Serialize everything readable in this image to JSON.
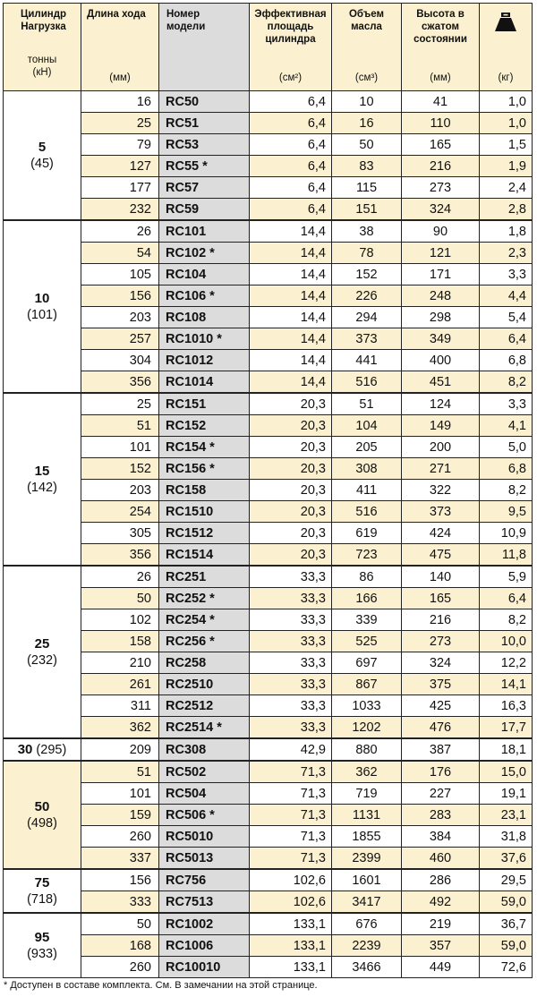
{
  "headers": {
    "cylinder": [
      "Цилиндр",
      "Нагрузка"
    ],
    "cylinder_units": [
      "тонны",
      "(кН)"
    ],
    "stroke": "Длина хода",
    "stroke_unit": "(мм)",
    "model": [
      "Номер",
      "модели"
    ],
    "area": [
      "Эффективная",
      "площадь",
      "цилиндра"
    ],
    "area_unit": "(см²)",
    "oil": [
      "Объем",
      "масла"
    ],
    "oil_unit": "(см³)",
    "height": [
      "Высота в",
      "сжатом",
      "состоянии"
    ],
    "height_unit": "(мм)",
    "weight_icon": "kettlebell-weight-icon",
    "weight_unit": "(кг)"
  },
  "groups": [
    {
      "tons": "5",
      "kn": "(45)",
      "rows": [
        {
          "stroke": "16",
          "model": "RC50",
          "area": "6,4",
          "oil": "10",
          "height": "41",
          "weight": "1,0"
        },
        {
          "stroke": "25",
          "model": "RC51",
          "area": "6,4",
          "oil": "16",
          "height": "110",
          "weight": "1,0"
        },
        {
          "stroke": "79",
          "model": "RC53",
          "area": "6,4",
          "oil": "50",
          "height": "165",
          "weight": "1,5"
        },
        {
          "stroke": "127",
          "model": "RC55 *",
          "area": "6,4",
          "oil": "83",
          "height": "216",
          "weight": "1,9"
        },
        {
          "stroke": "177",
          "model": "RC57",
          "area": "6,4",
          "oil": "115",
          "height": "273",
          "weight": "2,4"
        },
        {
          "stroke": "232",
          "model": "RC59",
          "area": "6,4",
          "oil": "151",
          "height": "324",
          "weight": "2,8"
        }
      ]
    },
    {
      "tons": "10",
      "kn": "(101)",
      "rows": [
        {
          "stroke": "26",
          "model": "RC101",
          "area": "14,4",
          "oil": "38",
          "height": "90",
          "weight": "1,8"
        },
        {
          "stroke": "54",
          "model": "RC102 *",
          "area": "14,4",
          "oil": "78",
          "height": "121",
          "weight": "2,3"
        },
        {
          "stroke": "105",
          "model": "RC104",
          "area": "14,4",
          "oil": "152",
          "height": "171",
          "weight": "3,3"
        },
        {
          "stroke": "156",
          "model": "RC106 *",
          "area": "14,4",
          "oil": "226",
          "height": "248",
          "weight": "4,4"
        },
        {
          "stroke": "203",
          "model": "RC108",
          "area": "14,4",
          "oil": "294",
          "height": "298",
          "weight": "5,4"
        },
        {
          "stroke": "257",
          "model": "RC1010 *",
          "area": "14,4",
          "oil": "373",
          "height": "349",
          "weight": "6,4"
        },
        {
          "stroke": "304",
          "model": "RC1012",
          "area": "14,4",
          "oil": "441",
          "height": "400",
          "weight": "6,8"
        },
        {
          "stroke": "356",
          "model": "RC1014",
          "area": "14,4",
          "oil": "516",
          "height": "451",
          "weight": "8,2"
        }
      ]
    },
    {
      "tons": "15",
      "kn": "(142)",
      "rows": [
        {
          "stroke": "25",
          "model": "RC151",
          "area": "20,3",
          "oil": "51",
          "height": "124",
          "weight": "3,3"
        },
        {
          "stroke": "51",
          "model": "RC152",
          "area": "20,3",
          "oil": "104",
          "height": "149",
          "weight": "4,1"
        },
        {
          "stroke": "101",
          "model": "RC154 *",
          "area": "20,3",
          "oil": "205",
          "height": "200",
          "weight": "5,0"
        },
        {
          "stroke": "152",
          "model": "RC156 *",
          "area": "20,3",
          "oil": "308",
          "height": "271",
          "weight": "6,8"
        },
        {
          "stroke": "203",
          "model": "RC158",
          "area": "20,3",
          "oil": "411",
          "height": "322",
          "weight": "8,2"
        },
        {
          "stroke": "254",
          "model": "RC1510",
          "area": "20,3",
          "oil": "516",
          "height": "373",
          "weight": "9,5"
        },
        {
          "stroke": "305",
          "model": "RC1512",
          "area": "20,3",
          "oil": "619",
          "height": "424",
          "weight": "10,9"
        },
        {
          "stroke": "356",
          "model": "RC1514",
          "area": "20,3",
          "oil": "723",
          "height": "475",
          "weight": "11,8"
        }
      ]
    },
    {
      "tons": "25",
      "kn": "(232)",
      "rows": [
        {
          "stroke": "26",
          "model": "RC251",
          "area": "33,3",
          "oil": "86",
          "height": "140",
          "weight": "5,9"
        },
        {
          "stroke": "50",
          "model": "RC252 *",
          "area": "33,3",
          "oil": "166",
          "height": "165",
          "weight": "6,4"
        },
        {
          "stroke": "102",
          "model": "RC254 *",
          "area": "33,3",
          "oil": "339",
          "height": "216",
          "weight": "8,2"
        },
        {
          "stroke": "158",
          "model": "RC256 *",
          "area": "33,3",
          "oil": "525",
          "height": "273",
          "weight": "10,0"
        },
        {
          "stroke": "210",
          "model": "RC258",
          "area": "33,3",
          "oil": "697",
          "height": "324",
          "weight": "12,2"
        },
        {
          "stroke": "261",
          "model": "RC2510",
          "area": "33,3",
          "oil": "867",
          "height": "375",
          "weight": "14,1"
        },
        {
          "stroke": "311",
          "model": "RC2512",
          "area": "33,3",
          "oil": "1033",
          "height": "425",
          "weight": "16,3"
        },
        {
          "stroke": "362",
          "model": "RC2514 *",
          "area": "33,3",
          "oil": "1202",
          "height": "476",
          "weight": "17,7"
        }
      ]
    },
    {
      "tons": "30",
      "kn": "(295)",
      "inline": true,
      "rows": [
        {
          "stroke": "209",
          "model": "RC308",
          "area": "42,9",
          "oil": "880",
          "height": "387",
          "weight": "18,1"
        }
      ]
    },
    {
      "tons": "50",
      "kn": "(498)",
      "rows": [
        {
          "stroke": "51",
          "model": "RC502",
          "area": "71,3",
          "oil": "362",
          "height": "176",
          "weight": "15,0"
        },
        {
          "stroke": "101",
          "model": "RC504",
          "area": "71,3",
          "oil": "719",
          "height": "227",
          "weight": "19,1"
        },
        {
          "stroke": "159",
          "model": "RC506 *",
          "area": "71,3",
          "oil": "1131",
          "height": "283",
          "weight": "23,1"
        },
        {
          "stroke": "260",
          "model": "RC5010",
          "area": "71,3",
          "oil": "1855",
          "height": "384",
          "weight": "31,8"
        },
        {
          "stroke": "337",
          "model": "RC5013",
          "area": "71,3",
          "oil": "2399",
          "height": "460",
          "weight": "37,6"
        }
      ]
    },
    {
      "tons": "75",
      "kn": "(718)",
      "rows": [
        {
          "stroke": "156",
          "model": "RC756",
          "area": "102,6",
          "oil": "1601",
          "height": "286",
          "weight": "29,5"
        },
        {
          "stroke": "333",
          "model": "RC7513",
          "area": "102,6",
          "oil": "3417",
          "height": "492",
          "weight": "59,0"
        }
      ]
    },
    {
      "tons": "95",
      "kn": "(933)",
      "rows": [
        {
          "stroke": "50",
          "model": "RC1002",
          "area": "133,1",
          "oil": "676",
          "height": "219",
          "weight": "36,7"
        },
        {
          "stroke": "168",
          "model": "RC1006",
          "area": "133,1",
          "oil": "2239",
          "height": "357",
          "weight": "59,0"
        },
        {
          "stroke": "260",
          "model": "RC10010",
          "area": "133,1",
          "oil": "3466",
          "height": "449",
          "weight": "72,6"
        }
      ]
    }
  ],
  "footnote": "*  Доступен в составе комплекта. См. В замечании на этой странице."
}
